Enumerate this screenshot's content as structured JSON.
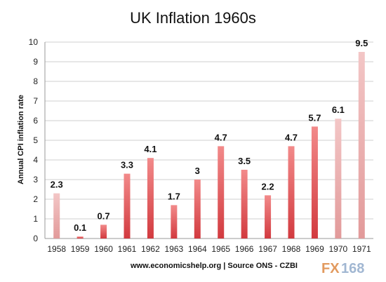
{
  "chart_data": {
    "type": "bar",
    "title": "UK Inflation 1960s",
    "ylabel": "Annual CPI inflation rate",
    "xlabel": "",
    "ylim": [
      0,
      10
    ],
    "yticks": [
      0,
      1,
      2,
      3,
      4,
      5,
      6,
      7,
      8,
      9,
      10
    ],
    "grid": true,
    "categories": [
      "1958",
      "1959",
      "1960",
      "1961",
      "1962",
      "1963",
      "1964",
      "1965",
      "1966",
      "1967",
      "1968",
      "1969",
      "1970",
      "1971"
    ],
    "values": [
      2.3,
      0.1,
      0.7,
      3.3,
      4.1,
      1.7,
      3,
      4.7,
      3.5,
      2.2,
      4.7,
      5.7,
      6.1,
      9.5
    ],
    "data_labels": [
      "2.3",
      "0.1",
      "0.7",
      "3.3",
      "4.1",
      "1.7",
      "3",
      "4.7",
      "3.5",
      "2.2",
      "4.7",
      "5.7",
      "6.1",
      "9.5"
    ],
    "colors": {
      "highlight_top": "#f28a8a",
      "highlight_bottom": "#d23a3f",
      "muted_top": "#f3c6c6",
      "muted_bottom": "#e29a9a",
      "grid": "#cfcfcf"
    },
    "muted_categories": [
      "1958",
      "1970",
      "1971"
    ]
  },
  "source_text": "www.economicshelp.org | Source ONS - CZBI",
  "watermark": {
    "part1": "FX",
    "part2": "168"
  }
}
